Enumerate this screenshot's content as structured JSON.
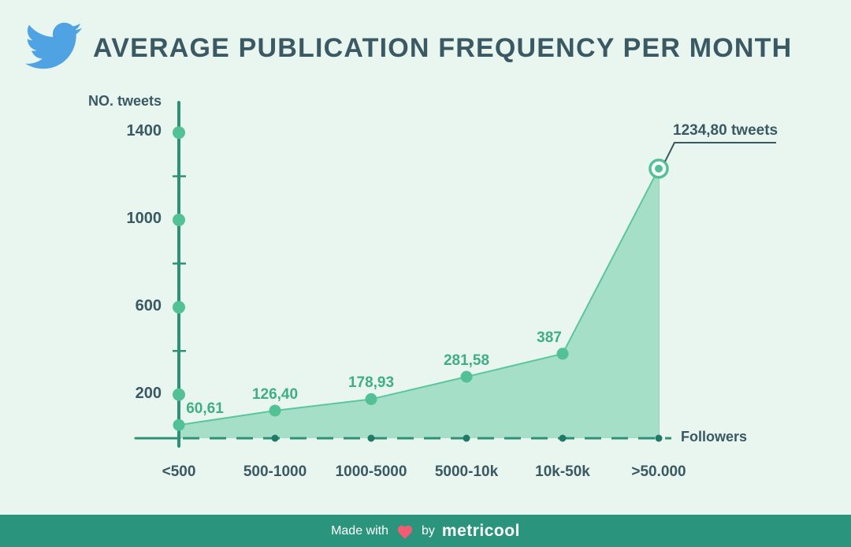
{
  "header": {
    "title": "AVERAGE PUBLICATION FREQUENCY PER MONTH"
  },
  "chart_data": {
    "type": "area",
    "title": "AVERAGE PUBLICATION FREQUENCY PER MONTH",
    "categories": [
      "<500",
      "500-1000",
      "1000-5000",
      "5000-10k",
      "10k-50k",
      ">50.000"
    ],
    "values": [
      60.61,
      126.4,
      178.93,
      281.58,
      387,
      1234.8
    ],
    "value_labels": [
      "60,61",
      "126,40",
      "178,93",
      "281,58",
      "387"
    ],
    "callout_label": "1234,80 tweets",
    "xlabel": "Followers",
    "ylabel": "NO. tweets",
    "y_ticks": [
      1400,
      1000,
      600,
      200
    ],
    "y_tick_labels": [
      "1400",
      "1000",
      "600",
      "200"
    ],
    "y_minor_ticks": [
      1200,
      800,
      400
    ],
    "ylim": [
      0,
      1530
    ],
    "grid": false,
    "legend": null
  },
  "footer": {
    "made_with": "Made with",
    "by": "by",
    "brand": "metricool"
  },
  "colors": {
    "background": "#E9F6F0",
    "slate": "#3A5963",
    "twitter_blue": "#4FA3E3",
    "axis_teal": "#2E9077",
    "dot_green": "#52C296",
    "area_fill": "#A6DFC7",
    "area_stroke": "#5BC69C",
    "label_green": "#3FAE85",
    "dark_dot": "#1E7A66",
    "footer_bg": "#2B947C",
    "heart_pink": "#F25C72"
  }
}
